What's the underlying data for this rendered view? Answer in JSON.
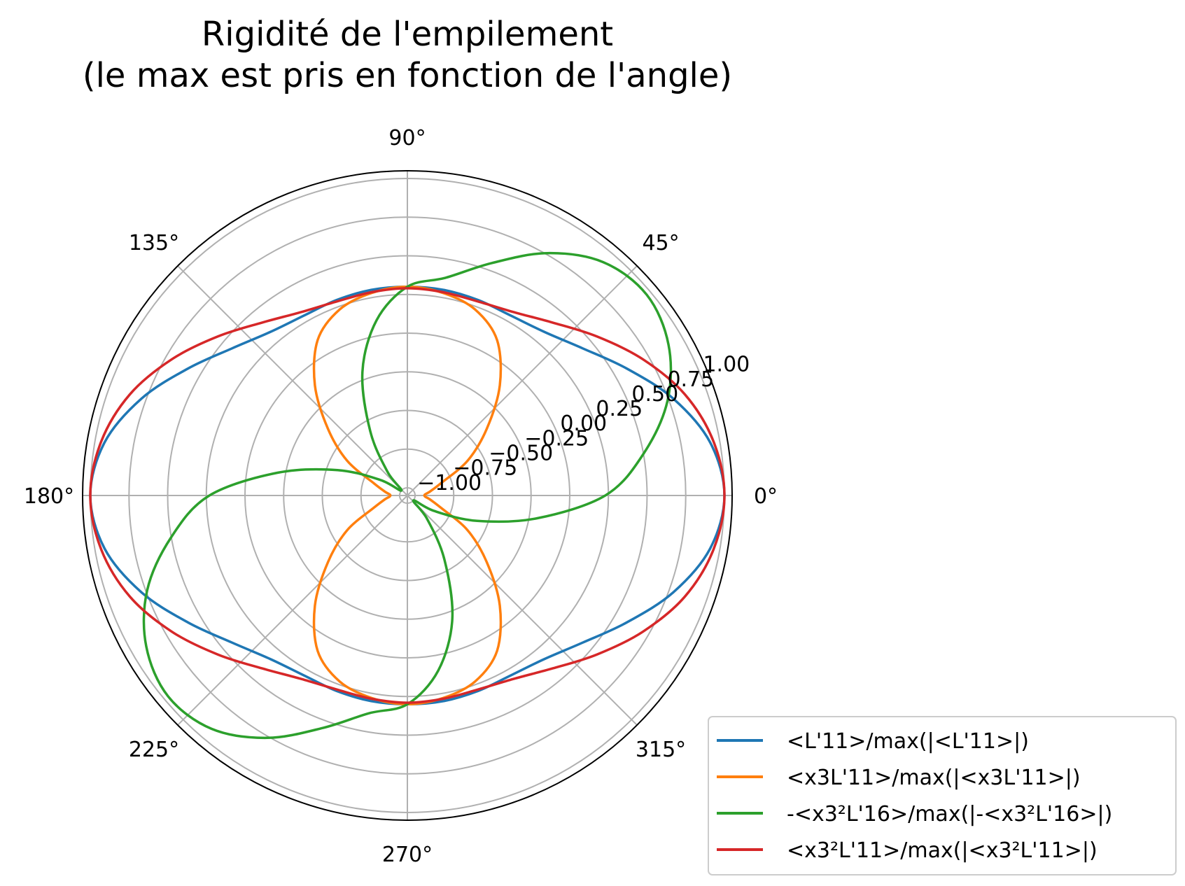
{
  "chart_data": {
    "type": "line",
    "projection": "polar",
    "title_lines": [
      "Rigidité de l'empilement",
      "(le max est pris en fonction de l'angle)"
    ],
    "theta_tick_labels": [
      "0°",
      "45°",
      "90°",
      "135°",
      "180°",
      "225°",
      "270°",
      "315°"
    ],
    "theta_ticks_deg": [
      0,
      45,
      90,
      135,
      180,
      225,
      270,
      315
    ],
    "r_tick_labels": [
      "−1.00",
      "−0.75",
      "−0.50",
      "−0.25",
      "0.00",
      "0.25",
      "0.50",
      "0.75",
      "1.00"
    ],
    "r_ticks": [
      -1.0,
      -0.75,
      -0.5,
      -0.25,
      0.0,
      0.25,
      0.5,
      0.75,
      1.0
    ],
    "rlim": [
      -1.05,
      1.05
    ],
    "grid": true,
    "legend_position": "lower-right, outside",
    "theta_deg": [
      0,
      10,
      20,
      30,
      40,
      50,
      60,
      70,
      80,
      90,
      100,
      110,
      120,
      130,
      140,
      150,
      160,
      170,
      180,
      190,
      200,
      210,
      220,
      230,
      240,
      250,
      260,
      270,
      280,
      290,
      300,
      310,
      320,
      330,
      340,
      350,
      360
    ],
    "series": [
      {
        "name": "<L'11>/max(|<L'11>|)",
        "color": "#1f77b4",
        "values": [
          1.0,
          0.937,
          0.78,
          0.59,
          0.43,
          0.33,
          0.292,
          0.294,
          0.3,
          0.3,
          0.3,
          0.294,
          0.292,
          0.33,
          0.43,
          0.59,
          0.78,
          0.937,
          1.0,
          0.937,
          0.78,
          0.59,
          0.43,
          0.33,
          0.292,
          0.294,
          0.3,
          0.3,
          0.3,
          0.294,
          0.292,
          0.33,
          0.43,
          0.59,
          0.78,
          0.937,
          1.0
        ]
      },
      {
        "name": "<x3L'11>/max(|<x3L'11>|)",
        "color": "#ff7f0e",
        "values": [
          -0.94,
          -0.9,
          -0.82,
          -0.6,
          -0.38,
          -0.12,
          0.11,
          0.23,
          0.28,
          0.3,
          0.28,
          0.23,
          0.11,
          -0.12,
          -0.38,
          -0.6,
          -0.82,
          -0.9,
          -0.94,
          -0.9,
          -0.82,
          -0.6,
          -0.38,
          -0.12,
          0.11,
          0.23,
          0.28,
          0.3,
          0.28,
          0.23,
          0.11,
          -0.12,
          -0.38,
          -0.6,
          -0.82,
          -0.9,
          -0.94
        ]
      },
      {
        "name": "-<x3²L'16>/max(|-<x3²L'16>|)",
        "color": "#2ca02c",
        "values": [
          0.23,
          0.5,
          0.74,
          0.9,
          0.97,
          0.92,
          0.76,
          0.55,
          0.38,
          0.3,
          0.1,
          -0.2,
          -0.57,
          -0.85,
          -1.0,
          -0.85,
          -0.57,
          -0.2,
          0.23,
          0.5,
          0.74,
          0.9,
          0.97,
          0.92,
          0.76,
          0.55,
          0.38,
          0.3,
          0.1,
          -0.2,
          -0.57,
          -0.85,
          -1.0,
          -0.85,
          -0.57,
          -0.2,
          0.23
        ]
      },
      {
        "name": "<x3²L'11>/max(|<x3²L'11>|)",
        "color": "#d62728",
        "values": [
          1.0,
          0.96,
          0.86,
          0.71,
          0.55,
          0.41,
          0.32,
          0.285,
          0.285,
          0.29,
          0.285,
          0.285,
          0.32,
          0.41,
          0.55,
          0.71,
          0.86,
          0.96,
          1.0,
          0.96,
          0.86,
          0.71,
          0.55,
          0.41,
          0.32,
          0.285,
          0.285,
          0.29,
          0.285,
          0.285,
          0.32,
          0.41,
          0.55,
          0.71,
          0.86,
          0.96,
          1.0
        ]
      }
    ]
  }
}
